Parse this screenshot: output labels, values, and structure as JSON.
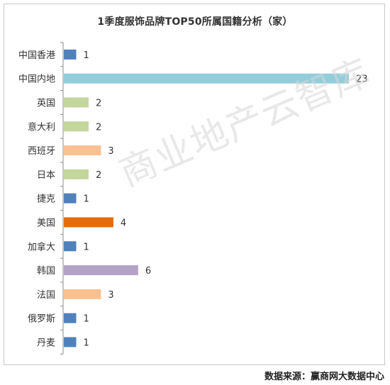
{
  "title": "1季度服饰品牌TOP50所属国籍分析（家）",
  "watermark": "商业地产云智库",
  "source": "数据来源：赢商网大数据中心",
  "chart_data": {
    "type": "bar",
    "orientation": "horizontal",
    "title": "1季度服饰品牌TOP50所属国籍分析（家）",
    "categories": [
      "中国香港",
      "中国内地",
      "英国",
      "意大利",
      "西班牙",
      "日本",
      "捷克",
      "美国",
      "加拿大",
      "韩国",
      "法国",
      "俄罗斯",
      "丹麦"
    ],
    "values": [
      1,
      23,
      2,
      2,
      3,
      2,
      1,
      4,
      1,
      6,
      3,
      1,
      1
    ],
    "colors": [
      "#4f81bd",
      "#92cddc",
      "#c3d69b",
      "#c3d69b",
      "#fac090",
      "#c3d69b",
      "#4f81bd",
      "#e46c0a",
      "#4f81bd",
      "#b3a2c7",
      "#fac090",
      "#4f81bd",
      "#4f81bd"
    ],
    "xlim": [
      0,
      23
    ],
    "data_labels": true,
    "legend": "none",
    "grid": false
  }
}
